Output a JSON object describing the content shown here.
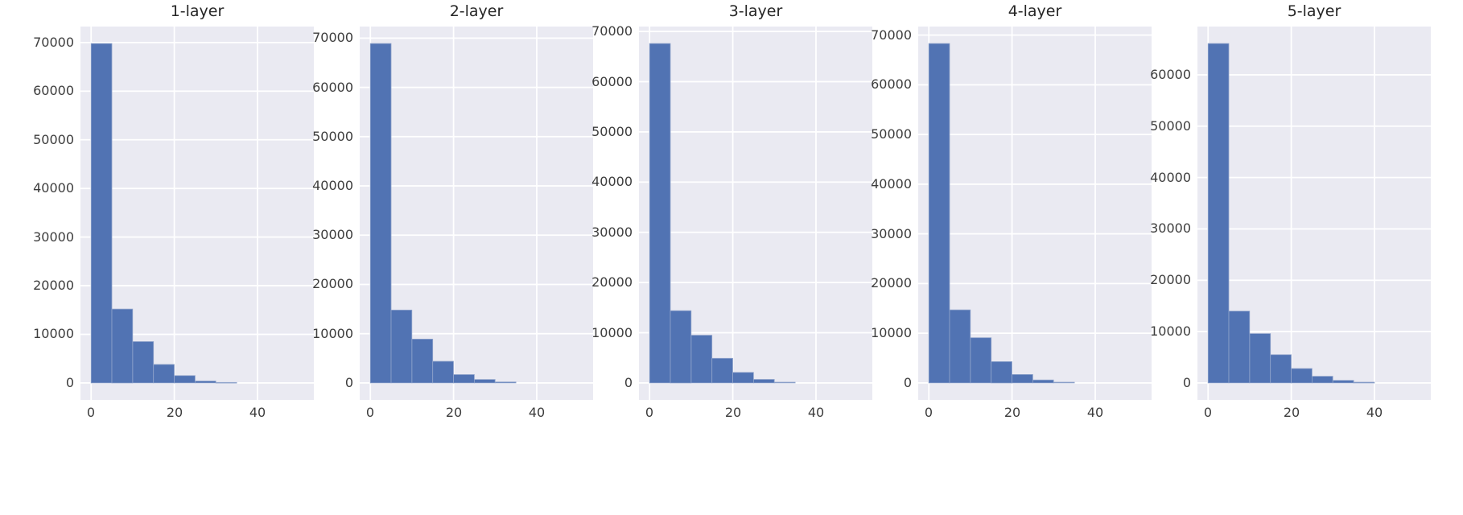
{
  "figure": {
    "background": "#ffffff",
    "plot_bg": "#eaeaf2",
    "grid_color": "#ffffff",
    "bar_color": "#5173b3",
    "bar_edge_color": "#8fa3cb",
    "tick_color": "#3d3d3d",
    "title_color": "#262626"
  },
  "chart_data": {
    "type": "bar",
    "subtype": "histogram-grid",
    "description": "Five side-by-side histograms with long right tails, seaborn darkgrid style",
    "grid": true,
    "legend": "none",
    "bin_start": 0,
    "bin_width": 5,
    "x_ticks": [
      0,
      20,
      40
    ],
    "xlim": [
      -2.55,
      53.55
    ],
    "charts": [
      {
        "title": "1-layer",
        "values": [
          69800,
          15200,
          8500,
          3800,
          1500,
          400,
          100
        ],
        "y_ticks": [
          0,
          10000,
          20000,
          30000,
          40000,
          50000,
          60000,
          70000
        ]
      },
      {
        "title": "2-layer",
        "values": [
          68900,
          14800,
          8900,
          4400,
          1700,
          700,
          200
        ],
        "y_ticks": [
          0,
          10000,
          20000,
          30000,
          40000,
          50000,
          60000,
          70000
        ]
      },
      {
        "title": "3-layer",
        "values": [
          67600,
          14400,
          9500,
          4900,
          2100,
          700,
          150
        ],
        "y_ticks": [
          0,
          10000,
          20000,
          30000,
          40000,
          50000,
          60000,
          70000
        ]
      },
      {
        "title": "4-layer",
        "values": [
          68300,
          14700,
          9100,
          4300,
          1700,
          600,
          150
        ],
        "y_ticks": [
          0,
          10000,
          20000,
          30000,
          40000,
          50000,
          60000,
          70000
        ]
      },
      {
        "title": "5-layer",
        "values": [
          66100,
          14000,
          9600,
          5500,
          2800,
          1300,
          500,
          150
        ],
        "y_ticks": [
          0,
          10000,
          20000,
          30000,
          40000,
          50000,
          60000
        ]
      }
    ]
  }
}
